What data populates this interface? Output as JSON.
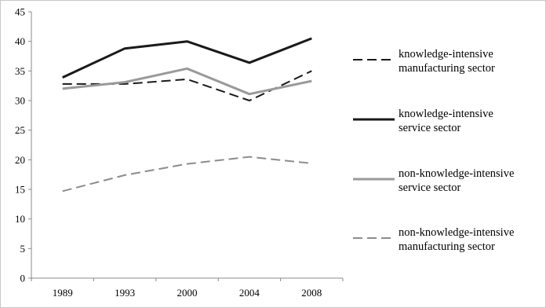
{
  "chart_data": {
    "type": "line",
    "title": "",
    "xlabel": "",
    "ylabel": "",
    "x": [
      "1989",
      "1993",
      "2000",
      "2004",
      "2008"
    ],
    "ylim": [
      0,
      45
    ],
    "yticks": [
      0,
      5,
      10,
      15,
      20,
      25,
      30,
      35,
      40,
      45
    ],
    "grid": false,
    "legend_position": "right",
    "series": [
      {
        "name_lines": [
          "knowledge-intensive",
          "manufacturing sector"
        ],
        "values": [
          32.8,
          32.8,
          33.6,
          30.0,
          35.0
        ],
        "color": "#1a1a1a",
        "style": "dashed"
      },
      {
        "name_lines": [
          "knowledge-intensive",
          "service sector"
        ],
        "values": [
          33.9,
          38.8,
          40.0,
          36.4,
          40.5
        ],
        "color": "#1a1a1a",
        "style": "solid"
      },
      {
        "name_lines": [
          "non-knowledge-intensive",
          "service sector"
        ],
        "values": [
          32.0,
          33.1,
          35.4,
          31.1,
          33.3
        ],
        "color": "#9a9a9a",
        "style": "solid"
      },
      {
        "name_lines": [
          "non-knowledge-intensive",
          "manufacturing sector"
        ],
        "values": [
          14.7,
          17.4,
          19.3,
          20.5,
          19.4
        ],
        "color": "#8c8c8c",
        "style": "dashed"
      }
    ]
  }
}
